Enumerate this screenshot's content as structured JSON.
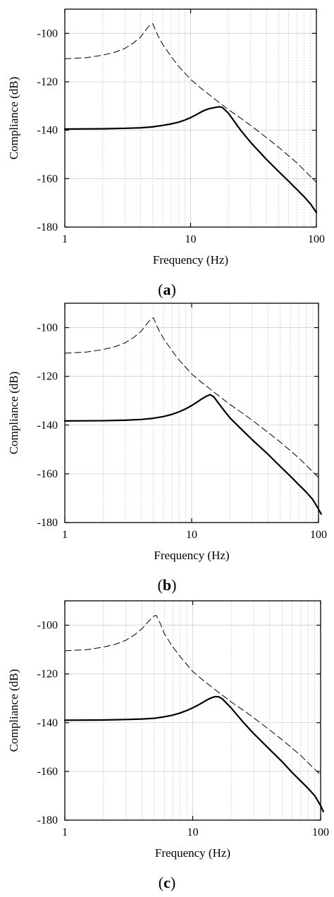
{
  "chart_data": [
    {
      "type": "line",
      "panel_label": "a",
      "xlabel": "Frequency (Hz)",
      "ylabel": "Compliance (dB)",
      "xscale": "log",
      "xlim": [
        1,
        100
      ],
      "ylim": [
        -180,
        -90
      ],
      "xticks": [
        1,
        10,
        100
      ],
      "xtick_labels": [
        "1",
        "10",
        "100"
      ],
      "yticks": [
        -100,
        -120,
        -140,
        -160,
        -180
      ],
      "ytick_labels": [
        "-100",
        "-120",
        "-140",
        "-160",
        "-180"
      ],
      "grid": true,
      "series": [
        {
          "style": "dashed",
          "x": [
            1,
            1.5,
            2,
            2.5,
            3,
            3.5,
            4,
            4.5,
            4.8,
            5,
            5.5,
            6,
            7,
            8,
            10,
            12,
            15,
            20,
            25,
            30,
            40,
            50,
            60,
            70,
            80,
            100
          ],
          "y": [
            -110.5,
            -110,
            -109,
            -107.8,
            -106.2,
            -104,
            -101.5,
            -98,
            -96.3,
            -96,
            -101,
            -104.5,
            -109.5,
            -113.5,
            -119,
            -122.5,
            -126.5,
            -131.5,
            -135,
            -138,
            -143,
            -147,
            -150.5,
            -153.5,
            -156.5,
            -161.5
          ]
        },
        {
          "style": "solid",
          "x": [
            1,
            2,
            3,
            4,
            5,
            6,
            7,
            8,
            9,
            10,
            11,
            12,
            13,
            14,
            15,
            16,
            17,
            18,
            20,
            25,
            30,
            40,
            50,
            60,
            70,
            80,
            90,
            100
          ],
          "y": [
            -139.5,
            -139.4,
            -139.2,
            -139,
            -138.6,
            -138,
            -137.4,
            -136.7,
            -135.8,
            -134.8,
            -133.7,
            -132.6,
            -131.7,
            -131.1,
            -130.8,
            -130.5,
            -130.3,
            -130.7,
            -133,
            -140,
            -145,
            -152,
            -157,
            -161,
            -164.5,
            -167.5,
            -170.5,
            -174
          ]
        }
      ]
    },
    {
      "type": "line",
      "panel_label": "b",
      "xlabel": "Frequency (Hz)",
      "ylabel": "Compliance (dB)",
      "xscale": "log",
      "xlim": [
        1,
        100
      ],
      "ylim": [
        -180,
        -90
      ],
      "xticks": [
        1,
        10,
        100
      ],
      "xtick_labels": [
        "1",
        "10",
        "100"
      ],
      "yticks": [
        -100,
        -120,
        -140,
        -160,
        -180
      ],
      "ytick_labels": [
        "-100",
        "-120",
        "-140",
        "-160",
        "-180"
      ],
      "grid": true,
      "series": [
        {
          "style": "dashed",
          "x": [
            1,
            1.5,
            2,
            2.5,
            3,
            3.5,
            4,
            4.5,
            4.8,
            5,
            5.5,
            6,
            7,
            8,
            10,
            12,
            15,
            20,
            25,
            30,
            40,
            50,
            60,
            70,
            80,
            100
          ],
          "y": [
            -110.5,
            -110,
            -109,
            -107.8,
            -106.2,
            -104,
            -101.5,
            -98,
            -96.3,
            -96,
            -101,
            -104.5,
            -109.5,
            -113.5,
            -119,
            -122.5,
            -126.5,
            -131.5,
            -135,
            -138,
            -143,
            -147,
            -150.5,
            -153.5,
            -156.5,
            -161.5
          ]
        },
        {
          "style": "solid",
          "x": [
            1,
            2,
            3,
            4,
            5,
            6,
            7,
            8,
            9,
            10,
            11,
            12,
            13,
            14,
            15,
            16,
            18,
            20,
            25,
            30,
            40,
            50,
            60,
            70,
            80,
            90,
            100,
            105
          ],
          "y": [
            -138.3,
            -138.2,
            -138,
            -137.7,
            -137.2,
            -136.5,
            -135.6,
            -134.5,
            -133.3,
            -132,
            -130.6,
            -129.3,
            -128.2,
            -127.5,
            -128.5,
            -130.5,
            -134,
            -137,
            -142,
            -146,
            -152,
            -157,
            -161,
            -164.5,
            -167.5,
            -170.5,
            -174.5,
            -176.5
          ]
        }
      ]
    },
    {
      "type": "line",
      "panel_label": "c",
      "xlabel": "Frequency (Hz)",
      "ylabel": "Compliance (dB)",
      "xscale": "log",
      "xlim": [
        1,
        100
      ],
      "ylim": [
        -180,
        -90
      ],
      "xticks": [
        1,
        10,
        100
      ],
      "xtick_labels": [
        "1",
        "10",
        "100"
      ],
      "yticks": [
        -100,
        -120,
        -140,
        -160,
        -180
      ],
      "ytick_labels": [
        "-100",
        "-120",
        "-140",
        "-160",
        "-180"
      ],
      "grid": true,
      "series": [
        {
          "style": "dashed",
          "x": [
            1,
            1.5,
            2,
            2.5,
            3,
            3.5,
            4,
            4.5,
            5,
            5.2,
            5.6,
            6,
            7,
            8,
            10,
            12,
            15,
            20,
            25,
            30,
            40,
            50,
            60,
            70,
            80,
            100
          ],
          "y": [
            -110.5,
            -110,
            -109,
            -107.8,
            -106.2,
            -104,
            -101.5,
            -98.5,
            -96.2,
            -96,
            -99.5,
            -103.5,
            -109,
            -113,
            -119,
            -122.5,
            -126.5,
            -131.5,
            -135,
            -138,
            -143,
            -147,
            -150.5,
            -153.5,
            -156.5,
            -161.5
          ]
        },
        {
          "style": "solid",
          "x": [
            1,
            2,
            3,
            4,
            5,
            6,
            7,
            8,
            9,
            10,
            11,
            12,
            13,
            14,
            15,
            16,
            17,
            18,
            20,
            25,
            30,
            40,
            50,
            60,
            70,
            80,
            90,
            100,
            105
          ],
          "y": [
            -139,
            -138.9,
            -138.7,
            -138.5,
            -138.2,
            -137.6,
            -136.9,
            -136,
            -135,
            -133.9,
            -132.8,
            -131.7,
            -130.6,
            -129.8,
            -129.3,
            -129.4,
            -130.2,
            -131.5,
            -134,
            -140,
            -144.5,
            -151,
            -156,
            -160.5,
            -164,
            -167,
            -170,
            -174,
            -176.5
          ]
        }
      ]
    }
  ]
}
